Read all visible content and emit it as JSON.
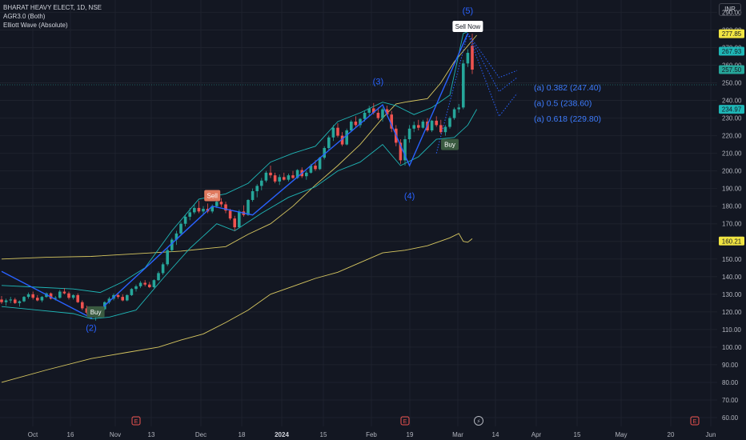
{
  "legend": {
    "symbol": "BHARAT HEAVY ELECT, 1D, NSE",
    "indicator_1": "AGR3.0 (Both)",
    "indicator_2": "Elliott Wave (Absolute)"
  },
  "currency": "INR",
  "colors": {
    "background": "#131722",
    "up": "#26a69a",
    "down": "#ef5350",
    "wave": "#2962ff",
    "envelope": "#d7c760",
    "band": "#1fb7b7"
  },
  "chart_data": {
    "type": "candlestick",
    "ylim": [
      55,
      297
    ],
    "y_ticks": [
      60,
      70,
      80,
      90,
      100,
      110,
      120,
      130,
      140,
      150,
      160,
      170,
      180,
      190,
      200,
      210,
      220,
      230,
      240,
      250,
      260,
      270,
      280,
      290
    ],
    "x_ticks": [
      "Oct",
      "16",
      "Nov",
      "13",
      "Dec",
      "18",
      "2024",
      "15",
      "Feb",
      "19",
      "Mar",
      "14",
      "Apr",
      "15",
      "May",
      "20",
      "Jun"
    ],
    "candles": [
      {
        "o": 127.0,
        "h": 129.0,
        "l": 124.5,
        "c": 125.5
      },
      {
        "o": 125.5,
        "h": 127.5,
        "l": 123.5,
        "c": 126.5
      },
      {
        "o": 126.5,
        "h": 128.5,
        "l": 125.0,
        "c": 127.0
      },
      {
        "o": 127.0,
        "h": 128.0,
        "l": 124.5,
        "c": 125.0
      },
      {
        "o": 125.0,
        "h": 126.5,
        "l": 123.0,
        "c": 126.0
      },
      {
        "o": 126.0,
        "h": 129.0,
        "l": 125.5,
        "c": 128.5
      },
      {
        "o": 128.5,
        "h": 131.0,
        "l": 127.5,
        "c": 130.0
      },
      {
        "o": 130.0,
        "h": 131.5,
        "l": 127.0,
        "c": 128.0
      },
      {
        "o": 128.0,
        "h": 129.5,
        "l": 126.0,
        "c": 126.5
      },
      {
        "o": 126.5,
        "h": 129.0,
        "l": 125.5,
        "c": 128.5
      },
      {
        "o": 128.5,
        "h": 131.0,
        "l": 128.0,
        "c": 130.5
      },
      {
        "o": 130.5,
        "h": 131.0,
        "l": 127.0,
        "c": 127.5
      },
      {
        "o": 127.5,
        "h": 129.0,
        "l": 126.5,
        "c": 128.0
      },
      {
        "o": 128.0,
        "h": 132.5,
        "l": 127.5,
        "c": 131.5
      },
      {
        "o": 131.5,
        "h": 133.5,
        "l": 130.0,
        "c": 130.5
      },
      {
        "o": 130.5,
        "h": 131.5,
        "l": 127.0,
        "c": 128.0
      },
      {
        "o": 128.0,
        "h": 130.0,
        "l": 127.0,
        "c": 129.5
      },
      {
        "o": 129.5,
        "h": 130.5,
        "l": 125.0,
        "c": 125.5
      },
      {
        "o": 125.5,
        "h": 126.5,
        "l": 121.0,
        "c": 122.0
      },
      {
        "o": 122.0,
        "h": 123.5,
        "l": 118.5,
        "c": 119.5
      },
      {
        "o": 119.5,
        "h": 121.0,
        "l": 116.5,
        "c": 117.0
      },
      {
        "o": 117.0,
        "h": 119.5,
        "l": 115.0,
        "c": 118.5
      },
      {
        "o": 118.5,
        "h": 122.0,
        "l": 117.5,
        "c": 121.5
      },
      {
        "o": 121.5,
        "h": 126.0,
        "l": 121.0,
        "c": 125.5
      },
      {
        "o": 125.5,
        "h": 128.5,
        "l": 124.5,
        "c": 127.5
      },
      {
        "o": 127.5,
        "h": 130.5,
        "l": 126.5,
        "c": 129.5
      },
      {
        "o": 129.5,
        "h": 131.0,
        "l": 127.5,
        "c": 128.5
      },
      {
        "o": 128.5,
        "h": 130.0,
        "l": 126.0,
        "c": 126.5
      },
      {
        "o": 126.5,
        "h": 130.0,
        "l": 126.0,
        "c": 129.5
      },
      {
        "o": 129.5,
        "h": 133.5,
        "l": 129.0,
        "c": 133.0
      },
      {
        "o": 133.0,
        "h": 135.5,
        "l": 131.5,
        "c": 134.5
      },
      {
        "o": 134.5,
        "h": 137.5,
        "l": 133.5,
        "c": 136.5
      },
      {
        "o": 136.5,
        "h": 138.0,
        "l": 134.5,
        "c": 135.5
      },
      {
        "o": 135.5,
        "h": 137.0,
        "l": 133.5,
        "c": 134.0
      },
      {
        "o": 134.0,
        "h": 138.5,
        "l": 133.5,
        "c": 138.0
      },
      {
        "o": 138.0,
        "h": 143.0,
        "l": 137.5,
        "c": 142.0
      },
      {
        "o": 142.0,
        "h": 148.0,
        "l": 141.0,
        "c": 147.0
      },
      {
        "o": 147.0,
        "h": 156.0,
        "l": 146.0,
        "c": 155.0
      },
      {
        "o": 155.0,
        "h": 162.0,
        "l": 154.0,
        "c": 161.0
      },
      {
        "o": 161.0,
        "h": 166.0,
        "l": 158.0,
        "c": 164.5
      },
      {
        "o": 164.5,
        "h": 171.0,
        "l": 163.5,
        "c": 170.0
      },
      {
        "o": 170.0,
        "h": 175.0,
        "l": 168.5,
        "c": 174.0
      },
      {
        "o": 174.0,
        "h": 179.0,
        "l": 172.0,
        "c": 176.5
      },
      {
        "o": 176.5,
        "h": 181.0,
        "l": 175.5,
        "c": 179.0
      },
      {
        "o": 179.0,
        "h": 183.0,
        "l": 176.0,
        "c": 177.0
      },
      {
        "o": 177.0,
        "h": 180.0,
        "l": 175.0,
        "c": 178.5
      },
      {
        "o": 178.5,
        "h": 181.5,
        "l": 176.0,
        "c": 177.0
      },
      {
        "o": 177.0,
        "h": 181.0,
        "l": 176.0,
        "c": 180.0
      },
      {
        "o": 180.0,
        "h": 184.0,
        "l": 179.0,
        "c": 182.5
      },
      {
        "o": 182.5,
        "h": 184.5,
        "l": 179.5,
        "c": 181.0
      },
      {
        "o": 181.0,
        "h": 182.5,
        "l": 176.0,
        "c": 177.5
      },
      {
        "o": 177.5,
        "h": 178.5,
        "l": 172.0,
        "c": 173.0
      },
      {
        "o": 173.0,
        "h": 174.5,
        "l": 166.0,
        "c": 168.0
      },
      {
        "o": 168.0,
        "h": 178.0,
        "l": 167.5,
        "c": 177.0
      },
      {
        "o": 177.0,
        "h": 180.5,
        "l": 174.0,
        "c": 175.0
      },
      {
        "o": 175.0,
        "h": 184.0,
        "l": 174.5,
        "c": 183.5
      },
      {
        "o": 183.5,
        "h": 190.0,
        "l": 182.5,
        "c": 188.5
      },
      {
        "o": 188.5,
        "h": 192.5,
        "l": 185.0,
        "c": 191.5
      },
      {
        "o": 191.5,
        "h": 196.0,
        "l": 189.0,
        "c": 194.5
      },
      {
        "o": 194.5,
        "h": 200.0,
        "l": 193.5,
        "c": 199.0
      },
      {
        "o": 199.0,
        "h": 203.0,
        "l": 196.0,
        "c": 197.5
      },
      {
        "o": 197.5,
        "h": 199.0,
        "l": 193.0,
        "c": 194.0
      },
      {
        "o": 194.0,
        "h": 198.0,
        "l": 192.0,
        "c": 196.5
      },
      {
        "o": 196.5,
        "h": 199.0,
        "l": 194.5,
        "c": 195.0
      },
      {
        "o": 195.0,
        "h": 198.5,
        "l": 194.0,
        "c": 197.5
      },
      {
        "o": 197.5,
        "h": 200.0,
        "l": 195.5,
        "c": 196.0
      },
      {
        "o": 196.0,
        "h": 201.0,
        "l": 195.5,
        "c": 200.5
      },
      {
        "o": 200.5,
        "h": 202.0,
        "l": 196.0,
        "c": 197.0
      },
      {
        "o": 197.0,
        "h": 200.0,
        "l": 195.0,
        "c": 199.0
      },
      {
        "o": 199.0,
        "h": 204.0,
        "l": 198.5,
        "c": 203.0
      },
      {
        "o": 203.0,
        "h": 206.0,
        "l": 200.0,
        "c": 201.0
      },
      {
        "o": 201.0,
        "h": 208.0,
        "l": 200.5,
        "c": 207.5
      },
      {
        "o": 207.5,
        "h": 214.0,
        "l": 206.5,
        "c": 213.0
      },
      {
        "o": 213.0,
        "h": 220.0,
        "l": 212.0,
        "c": 219.0
      },
      {
        "o": 219.0,
        "h": 226.0,
        "l": 217.0,
        "c": 224.5
      },
      {
        "o": 224.5,
        "h": 227.0,
        "l": 219.0,
        "c": 220.0
      },
      {
        "o": 220.0,
        "h": 222.0,
        "l": 214.0,
        "c": 215.0
      },
      {
        "o": 215.0,
        "h": 224.0,
        "l": 214.5,
        "c": 223.0
      },
      {
        "o": 223.0,
        "h": 229.0,
        "l": 222.0,
        "c": 228.0
      },
      {
        "o": 228.0,
        "h": 231.0,
        "l": 225.0,
        "c": 226.0
      },
      {
        "o": 226.0,
        "h": 230.0,
        "l": 224.5,
        "c": 229.5
      },
      {
        "o": 229.5,
        "h": 234.0,
        "l": 228.0,
        "c": 233.0
      },
      {
        "o": 233.0,
        "h": 237.0,
        "l": 231.0,
        "c": 235.5
      },
      {
        "o": 235.5,
        "h": 238.5,
        "l": 232.0,
        "c": 233.0
      },
      {
        "o": 233.0,
        "h": 236.0,
        "l": 229.0,
        "c": 230.0
      },
      {
        "o": 230.0,
        "h": 236.0,
        "l": 228.0,
        "c": 235.0
      },
      {
        "o": 235.0,
        "h": 237.0,
        "l": 231.0,
        "c": 232.0
      },
      {
        "o": 232.0,
        "h": 234.0,
        "l": 222.0,
        "c": 224.0
      },
      {
        "o": 224.0,
        "h": 226.0,
        "l": 214.0,
        "c": 216.0
      },
      {
        "o": 216.0,
        "h": 218.0,
        "l": 204.0,
        "c": 206.0
      },
      {
        "o": 206.0,
        "h": 220.0,
        "l": 203.0,
        "c": 218.0
      },
      {
        "o": 218.0,
        "h": 226.0,
        "l": 216.0,
        "c": 224.0
      },
      {
        "o": 224.0,
        "h": 228.0,
        "l": 222.0,
        "c": 226.0
      },
      {
        "o": 226.0,
        "h": 229.0,
        "l": 223.0,
        "c": 224.5
      },
      {
        "o": 224.5,
        "h": 229.0,
        "l": 224.0,
        "c": 228.0
      },
      {
        "o": 228.0,
        "h": 230.0,
        "l": 222.0,
        "c": 223.0
      },
      {
        "o": 223.0,
        "h": 229.0,
        "l": 222.0,
        "c": 228.5
      },
      {
        "o": 228.5,
        "h": 231.0,
        "l": 225.0,
        "c": 226.0
      },
      {
        "o": 226.0,
        "h": 229.0,
        "l": 221.0,
        "c": 222.0
      },
      {
        "o": 222.0,
        "h": 226.0,
        "l": 220.0,
        "c": 225.0
      },
      {
        "o": 225.0,
        "h": 231.0,
        "l": 224.0,
        "c": 230.0
      },
      {
        "o": 230.0,
        "h": 236.0,
        "l": 229.0,
        "c": 235.0
      },
      {
        "o": 235.0,
        "h": 238.0,
        "l": 233.0,
        "c": 236.0
      },
      {
        "o": 236.0,
        "h": 263.0,
        "l": 235.0,
        "c": 261.0
      },
      {
        "o": 261.0,
        "h": 269.0,
        "l": 259.0,
        "c": 267.0
      },
      {
        "o": 271.0,
        "h": 277.85,
        "l": 255.0,
        "c": 257.5
      }
    ],
    "envelope_upper": [
      [
        0,
        150.0
      ],
      [
        10,
        151.0
      ],
      [
        20,
        151.5
      ],
      [
        30,
        153.0
      ],
      [
        40,
        154.5
      ],
      [
        50,
        157.0
      ],
      [
        55,
        164.0
      ],
      [
        60,
        170.0
      ],
      [
        65,
        180.0
      ],
      [
        70,
        192.0
      ],
      [
        75,
        203.0
      ],
      [
        80,
        215.0
      ],
      [
        85,
        230.0
      ],
      [
        88,
        238.0
      ],
      [
        90,
        239.0
      ],
      [
        95,
        241.0
      ],
      [
        98,
        250.0
      ],
      [
        101,
        262.0
      ],
      [
        104,
        271.0
      ],
      [
        106,
        277.0
      ]
    ],
    "envelope_lower": [
      [
        0,
        80.0
      ],
      [
        10,
        87.0
      ],
      [
        20,
        93.5
      ],
      [
        28,
        97.0
      ],
      [
        35,
        100.0
      ],
      [
        40,
        104.0
      ],
      [
        45,
        107.5
      ],
      [
        50,
        114.0
      ],
      [
        55,
        121.0
      ],
      [
        60,
        130.0
      ],
      [
        65,
        134.5
      ],
      [
        70,
        139.0
      ],
      [
        75,
        142.5
      ],
      [
        80,
        148.0
      ],
      [
        85,
        153.5
      ],
      [
        90,
        155.0
      ],
      [
        95,
        157.5
      ],
      [
        100,
        162.0
      ],
      [
        102,
        164.5
      ],
      [
        103,
        160.0
      ],
      [
        104,
        159.5
      ],
      [
        105,
        161.5
      ]
    ],
    "band_upper": [
      [
        0,
        135.0
      ],
      [
        8,
        134.0
      ],
      [
        16,
        133.0
      ],
      [
        22,
        131.0
      ],
      [
        27,
        137.0
      ],
      [
        32,
        145.0
      ],
      [
        38,
        166.0
      ],
      [
        44,
        184.0
      ],
      [
        50,
        187.0
      ],
      [
        55,
        193.0
      ],
      [
        60,
        205.0
      ],
      [
        65,
        210.0
      ],
      [
        70,
        214.0
      ],
      [
        75,
        228.0
      ],
      [
        80,
        233.0
      ],
      [
        85,
        239.0
      ],
      [
        88,
        237.0
      ],
      [
        92,
        232.0
      ],
      [
        96,
        236.0
      ],
      [
        100,
        243.0
      ],
      [
        103,
        278.0
      ],
      [
        105,
        280.0
      ]
    ],
    "band_lower": [
      [
        0,
        123.0
      ],
      [
        8,
        121.0
      ],
      [
        16,
        119.0
      ],
      [
        20,
        116.0
      ],
      [
        24,
        117.0
      ],
      [
        30,
        121.0
      ],
      [
        36,
        139.0
      ],
      [
        42,
        156.0
      ],
      [
        48,
        170.0
      ],
      [
        52,
        166.0
      ],
      [
        58,
        176.0
      ],
      [
        64,
        185.0
      ],
      [
        70,
        191.0
      ],
      [
        75,
        200.0
      ],
      [
        80,
        205.0
      ],
      [
        85,
        215.0
      ],
      [
        89,
        203.0
      ],
      [
        93,
        208.0
      ],
      [
        97,
        218.0
      ],
      [
        101,
        219.0
      ],
      [
        104,
        226.0
      ],
      [
        106,
        235.0
      ]
    ],
    "wave_lines": [
      [
        [
          0,
          143.0
        ],
        [
          20,
          116.5
        ],
        [
          47,
          180.0
        ],
        [
          56,
          175.0
        ],
        [
          85,
          237.5
        ],
        [
          91,
          203.0
        ],
        [
          104,
          278.0
        ]
      ]
    ],
    "projections": [
      [
        [
          104,
          278.0
        ],
        [
          111,
          253.0
        ],
        [
          115,
          257.0
        ]
      ],
      [
        [
          104,
          278.0
        ],
        [
          111,
          245.0
        ],
        [
          115,
          253.0
        ]
      ],
      [
        [
          104,
          278.0
        ],
        [
          111,
          231.0
        ],
        [
          115,
          244.0
        ]
      ]
    ],
    "wave_labels": [
      {
        "text": "(2)",
        "i": 20,
        "price": 111.0
      },
      {
        "text": "(3)",
        "i": 84,
        "price": 251.0
      },
      {
        "text": "(4)",
        "i": 91,
        "price": 186.0
      },
      {
        "text": "(5)",
        "i": 104,
        "price": 291.0
      }
    ],
    "fib_labels": [
      {
        "text": "(a) 0.382 (247.40)",
        "i": 118,
        "price": 247.4
      },
      {
        "text": "(a) 0.5 (238.60)",
        "i": 118,
        "price": 238.6
      },
      {
        "text": "(a) 0.618 (229.80)",
        "i": 118,
        "price": 229.8
      }
    ],
    "signals": [
      {
        "text": "Buy",
        "i": 21,
        "price": 120.0,
        "kind": "buy"
      },
      {
        "text": "Sell",
        "i": 47,
        "price": 186.0,
        "kind": "sell"
      },
      {
        "text": "Buy",
        "i": 100,
        "price": 215.0,
        "kind": "buy"
      },
      {
        "text": "Sell Now",
        "i": 104,
        "price": 282.0,
        "kind": "sellnow"
      }
    ],
    "price_tags": [
      {
        "text": "277.85",
        "price": 277.85,
        "bg": "#f0e442",
        "fg": "#131722"
      },
      {
        "text": "267.93",
        "price": 267.93,
        "bg": "#1fb7b7",
        "fg": "#131722"
      },
      {
        "text": "257.50",
        "price": 257.5,
        "bg": "#26a69a",
        "fg": "#131722"
      },
      {
        "text": "234.97",
        "price": 234.97,
        "bg": "#1fb7b7",
        "fg": "#131722"
      },
      {
        "text": "160.21",
        "price": 160.21,
        "bg": "#f0e442",
        "fg": "#131722"
      }
    ],
    "event_markers": [
      {
        "text": "E",
        "i": 30
      },
      {
        "text": "E",
        "i": 90
      },
      {
        "text": "E",
        "i": 154
      }
    ],
    "dividend_marker": {
      "text": "⚡",
      "i": 106
    }
  }
}
